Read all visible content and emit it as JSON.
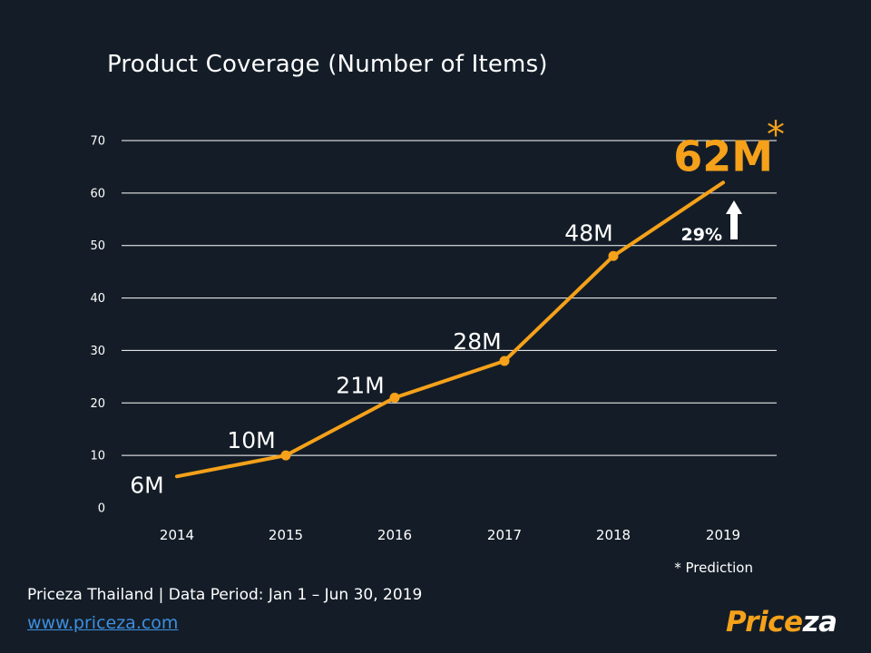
{
  "colors": {
    "background": "#141d27",
    "line": "#f5a11a",
    "grid": "#ffffff",
    "text": "#ffffff"
  },
  "chart_data": {
    "type": "line",
    "title": "Product Coverage (Number of Items)",
    "categories": [
      "2014",
      "2015",
      "2016",
      "2017",
      "2018",
      "2019"
    ],
    "values": [
      6,
      10,
      21,
      28,
      48,
      62
    ],
    "data_labels": [
      "6M",
      "10M",
      "21M",
      "28M",
      "48M",
      "62M"
    ],
    "ylim": [
      0,
      70
    ],
    "yticks": [
      0,
      10,
      20,
      30,
      40,
      50,
      60,
      70
    ],
    "xlabel": "",
    "ylabel": "",
    "grid": true,
    "annotations": {
      "prediction_marker": "*",
      "growth_label": "29%",
      "growth_icon": "arrow-up-icon",
      "prediction_note": "* Prediction"
    }
  },
  "footer": {
    "source": "Priceza Thailand | Data Period: Jan 1 – Jun 30, 2019",
    "link": "www.priceza.com"
  },
  "logo": {
    "part1": "Price",
    "part2": "za"
  }
}
